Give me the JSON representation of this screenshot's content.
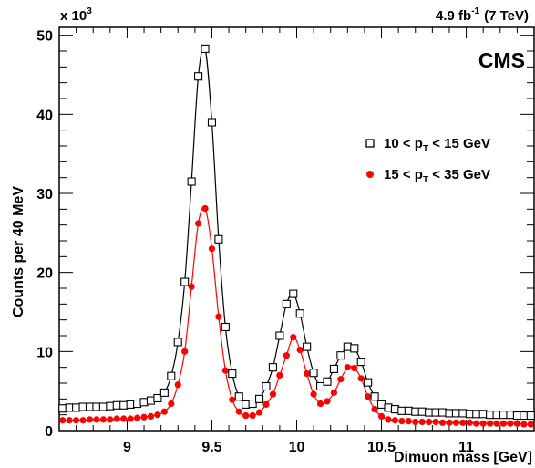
{
  "chart_data": {
    "type": "scatter",
    "title": "",
    "xlabel": "Dimuon mass [GeV]",
    "ylabel": "Counts per 40 MeV",
    "y_multiplier_label": {
      "base": "x 10",
      "exp": "3"
    },
    "xlim": [
      8.6,
      11.4
    ],
    "ylim": [
      0,
      51
    ],
    "x_ticks": [
      9,
      9.5,
      10,
      10.5,
      11
    ],
    "x_tick_labels": [
      "9",
      "9.5",
      "10",
      "10.5",
      "11"
    ],
    "y_ticks": [
      0,
      10,
      20,
      30,
      40,
      50
    ],
    "y_tick_labels": [
      "0",
      "10",
      "20",
      "30",
      "40",
      "50"
    ],
    "luminosity_label": {
      "value": "4.9 fb",
      "exp": "-1",
      "energy": "(7 TeV)"
    },
    "experiment_label": "CMS",
    "legend_position": "right",
    "legend": [
      {
        "pre": "10 < p",
        "sub": "T",
        "post": " < 15 GeV",
        "marker": "open-square",
        "color": "#000000"
      },
      {
        "pre": "15 < p",
        "sub": "T",
        "post": " < 35 GeV",
        "marker": "filled-circle",
        "color": "#ff0000"
      }
    ],
    "x": [
      8.62,
      8.66,
      8.7,
      8.74,
      8.78,
      8.82,
      8.86,
      8.9,
      8.94,
      8.98,
      9.02,
      9.06,
      9.1,
      9.14,
      9.18,
      9.22,
      9.26,
      9.3,
      9.34,
      9.38,
      9.42,
      9.46,
      9.5,
      9.54,
      9.58,
      9.62,
      9.66,
      9.7,
      9.74,
      9.78,
      9.82,
      9.86,
      9.9,
      9.94,
      9.98,
      10.02,
      10.06,
      10.1,
      10.14,
      10.18,
      10.22,
      10.26,
      10.3,
      10.34,
      10.38,
      10.42,
      10.46,
      10.5,
      10.54,
      10.58,
      10.62,
      10.66,
      10.7,
      10.74,
      10.78,
      10.82,
      10.86,
      10.9,
      10.94,
      10.98,
      11.02,
      11.06,
      11.1,
      11.14,
      11.18,
      11.22,
      11.26,
      11.3,
      11.34,
      11.38
    ],
    "series": [
      {
        "name": "10 < pT < 15 GeV",
        "marker": "open-square",
        "color": "#000000",
        "values": [
          2.8,
          2.9,
          2.9,
          3.0,
          3.0,
          3.0,
          3.0,
          3.1,
          3.2,
          3.2,
          3.3,
          3.4,
          3.6,
          3.8,
          4.1,
          4.8,
          6.9,
          11.2,
          18.8,
          31.5,
          44.8,
          48.3,
          39.0,
          24.2,
          13.1,
          7.2,
          4.3,
          3.3,
          3.4,
          4.0,
          5.6,
          8.0,
          12.0,
          16.0,
          17.3,
          14.8,
          10.6,
          7.3,
          5.6,
          6.2,
          7.8,
          9.5,
          10.6,
          10.4,
          8.7,
          6.1,
          4.3,
          3.3,
          2.9,
          2.7,
          2.5,
          2.5,
          2.4,
          2.4,
          2.3,
          2.3,
          2.3,
          2.2,
          2.2,
          2.2,
          2.1,
          2.1,
          2.1,
          2.0,
          2.0,
          2.0,
          2.0,
          1.9,
          1.9,
          1.9
        ]
      },
      {
        "name": "15 < pT < 35 GeV",
        "marker": "filled-circle",
        "color": "#ff0000",
        "values": [
          1.3,
          1.3,
          1.3,
          1.3,
          1.4,
          1.4,
          1.4,
          1.4,
          1.5,
          1.5,
          1.5,
          1.6,
          1.7,
          1.8,
          2.0,
          2.4,
          3.4,
          5.8,
          10.0,
          18.2,
          26.2,
          28.1,
          23.0,
          14.4,
          7.6,
          3.9,
          2.4,
          1.9,
          1.9,
          2.3,
          3.3,
          4.6,
          7.0,
          9.5,
          11.8,
          10.2,
          7.2,
          4.6,
          3.4,
          3.7,
          4.8,
          6.5,
          8.0,
          7.9,
          6.6,
          4.3,
          2.7,
          1.8,
          1.4,
          1.3,
          1.2,
          1.2,
          1.1,
          1.1,
          1.1,
          1.1,
          1.0,
          1.0,
          1.0,
          1.0,
          1.0,
          0.9,
          0.9,
          0.9,
          0.9,
          0.9,
          0.9,
          0.9,
          0.8,
          0.8
        ]
      }
    ]
  }
}
